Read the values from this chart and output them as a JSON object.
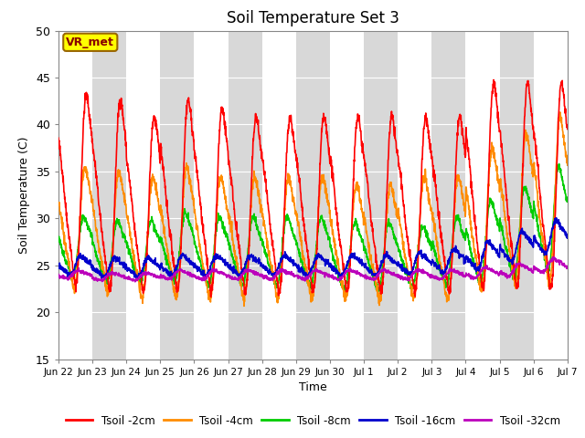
{
  "title": "Soil Temperature Set 3",
  "xlabel": "Time",
  "ylabel": "Soil Temperature (C)",
  "ylim": [
    15,
    50
  ],
  "yticks": [
    15,
    20,
    25,
    30,
    35,
    40,
    45,
    50
  ],
  "annotation": "VR_met",
  "annotation_bbox_facecolor": "#FFFF00",
  "annotation_bbox_edgecolor": "#996600",
  "series_colors": [
    "#FF0000",
    "#FF8C00",
    "#00CC00",
    "#0000CC",
    "#BB00BB"
  ],
  "series_labels": [
    "Tsoil -2cm",
    "Tsoil -4cm",
    "Tsoil -8cm",
    "Tsoil -16cm",
    "Tsoil -32cm"
  ],
  "series_linewidths": [
    1.2,
    1.2,
    1.2,
    1.2,
    1.2
  ],
  "xtick_labels": [
    "Jun 22",
    "Jun 23",
    "Jun 24",
    "Jun 25",
    "Jun 26",
    "Jun 27",
    "Jun 28",
    "Jun 29",
    "Jun 30",
    "Jul 1",
    "Jul 2",
    "Jul 3",
    "Jul 4",
    "Jul 5",
    "Jul 6",
    "Jul 7"
  ],
  "background_color": "#FFFFFF",
  "plot_bg_color": "#D8D8D8",
  "grid_color": "#FFFFFF",
  "n_points_per_day": 144,
  "n_days": 15,
  "amp_2cm": [
    12.5,
    12.5,
    11.5,
    12.5,
    12.0,
    11.5,
    11.5,
    11.5,
    11.5,
    11.5,
    11.5,
    11.5,
    13.5,
    13.5,
    13.5
  ],
  "amp_4cm": [
    8.0,
    8.0,
    8.0,
    8.5,
    8.0,
    8.0,
    8.0,
    8.0,
    7.5,
    7.5,
    8.0,
    8.0,
    9.5,
    10.0,
    11.0
  ],
  "amp_8cm": [
    4.0,
    4.0,
    4.0,
    4.5,
    4.5,
    4.5,
    4.5,
    4.5,
    4.5,
    4.5,
    4.0,
    4.5,
    5.5,
    6.0,
    7.0
  ],
  "amp_16cm": [
    1.2,
    1.2,
    1.2,
    1.3,
    1.3,
    1.3,
    1.3,
    1.3,
    1.3,
    1.3,
    1.4,
    1.5,
    1.8,
    2.0,
    2.2
  ],
  "amp_32cm": [
    0.5,
    0.5,
    0.5,
    0.6,
    0.6,
    0.6,
    0.6,
    0.6,
    0.6,
    0.6,
    0.6,
    0.6,
    0.7,
    0.8,
    0.9
  ],
  "base_2cm": [
    33.0,
    32.5,
    31.5,
    32.5,
    32.0,
    31.5,
    31.5,
    31.5,
    31.5,
    31.5,
    31.5,
    31.5,
    33.5,
    33.5,
    33.5
  ],
  "base_4cm": [
    29.0,
    28.5,
    28.0,
    28.5,
    28.0,
    28.0,
    28.0,
    28.0,
    27.5,
    27.5,
    28.0,
    28.0,
    30.0,
    31.0,
    32.0
  ],
  "base_8cm": [
    27.0,
    26.5,
    26.5,
    27.0,
    26.5,
    26.5,
    26.5,
    26.5,
    26.0,
    26.0,
    26.0,
    26.5,
    27.5,
    28.5,
    30.0
  ],
  "base_16cm": [
    25.0,
    24.8,
    24.8,
    25.0,
    25.0,
    25.0,
    25.0,
    25.0,
    25.0,
    25.0,
    25.2,
    25.5,
    26.0,
    27.0,
    28.0
  ],
  "base_32cm": [
    24.0,
    23.8,
    23.8,
    24.0,
    24.0,
    24.0,
    24.0,
    24.0,
    24.0,
    24.0,
    24.0,
    24.0,
    24.2,
    24.5,
    25.0
  ],
  "peak_hour_2cm": 14,
  "peak_hour_4cm": 15,
  "peak_hour_8cm": 16,
  "peak_hour_16cm": 18,
  "peak_hour_32cm": 20,
  "noise_2cm": 0.3,
  "noise_4cm": 0.3,
  "noise_8cm": 0.2,
  "noise_16cm": 0.15,
  "noise_32cm": 0.1
}
